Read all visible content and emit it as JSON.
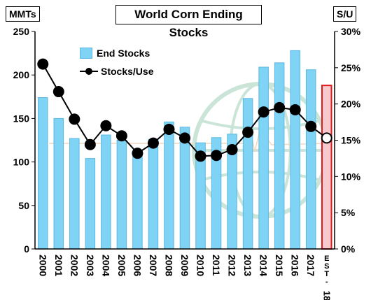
{
  "header": {
    "title": "World Corn Ending Stocks",
    "left_unit": "MMTs",
    "right_unit": "S/U"
  },
  "legend": {
    "bars_label": "End Stocks",
    "line_label": "Stocks/Use"
  },
  "colors": {
    "bar_fill": "#7fd3f5",
    "bar_stroke": "#5cb8e0",
    "estimate_border": "#e0191f",
    "estimate_fill": "#f7c9cc",
    "line": "#000000",
    "watermark": "#9fcfb8"
  },
  "watermark_icon": "globe-logo",
  "chart_data": {
    "type": "bar",
    "title": "World Corn Ending Stocks",
    "categories": [
      "2000",
      "2001",
      "2002",
      "2003",
      "2004",
      "2005",
      "2006",
      "2007",
      "2008",
      "2009",
      "2010",
      "2011",
      "2012",
      "2013",
      "2014",
      "2015",
      "2016",
      "2017",
      "EST-18"
    ],
    "category_labels": [
      "2000",
      "2001",
      "2002",
      "2003",
      "2004",
      "2005",
      "2006",
      "2007",
      "2008",
      "2009",
      "2010",
      "2011",
      "2012",
      "2013",
      "2014",
      "2015",
      "2016",
      "2017",
      "E S T - 18"
    ],
    "series": [
      {
        "name": "End Stocks",
        "type": "bar",
        "axis": "left",
        "values": [
          174,
          150,
          127,
          104,
          131,
          125,
          110,
          126,
          146,
          140,
          122,
          128,
          132,
          173,
          209,
          214,
          228,
          206,
          188
        ]
      },
      {
        "name": "Stocks/Use",
        "type": "line",
        "axis": "right",
        "values": [
          25.5,
          21.7,
          17.9,
          14.4,
          17.0,
          15.6,
          13.2,
          14.6,
          16.5,
          15.3,
          12.8,
          12.9,
          13.7,
          16.1,
          18.9,
          19.5,
          19.2,
          16.9,
          15.3
        ]
      }
    ],
    "estimate_index": 18,
    "y_left": {
      "min": 0,
      "max": 250,
      "ticks": [
        0,
        50,
        100,
        150,
        200,
        250
      ]
    },
    "y_right": {
      "min": 0,
      "max": 30,
      "ticks": [
        "0%",
        "5%",
        "10%",
        "15%",
        "20%",
        "25%",
        "30%"
      ]
    },
    "grid": false,
    "legend_position": "top-left"
  }
}
